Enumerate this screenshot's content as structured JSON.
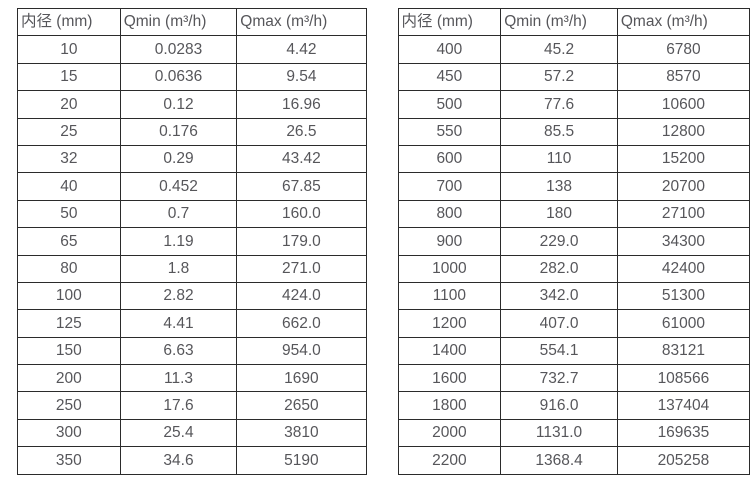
{
  "page": {
    "background": "#ffffff",
    "border_color": "#2b2b2b",
    "text_color": "#56565a"
  },
  "tables": [
    {
      "name": "flow-table-left",
      "headers": [
        "内径 (mm)",
        "Qmin (m³/h)",
        "Qmax (m³/h)"
      ],
      "rows": [
        [
          "10",
          "0.0283",
          "4.42"
        ],
        [
          "15",
          "0.0636",
          "9.54"
        ],
        [
          "20",
          "0.12",
          "16.96"
        ],
        [
          "25",
          "0.176",
          "26.5"
        ],
        [
          "32",
          "0.29",
          "43.42"
        ],
        [
          "40",
          "0.452",
          "67.85"
        ],
        [
          "50",
          "0.7",
          "160.0"
        ],
        [
          "65",
          "1.19",
          "179.0"
        ],
        [
          "80",
          "1.8",
          "271.0"
        ],
        [
          "100",
          "2.82",
          "424.0"
        ],
        [
          "125",
          "4.41",
          "662.0"
        ],
        [
          "150",
          "6.63",
          "954.0"
        ],
        [
          "200",
          "11.3",
          "1690"
        ],
        [
          "250",
          "17.6",
          "2650"
        ],
        [
          "300",
          "25.4",
          "3810"
        ],
        [
          "350",
          "34.6",
          "5190"
        ]
      ]
    },
    {
      "name": "flow-table-right",
      "headers": [
        "内径 (mm)",
        "Qmin (m³/h)",
        "Qmax (m³/h)"
      ],
      "rows": [
        [
          "400",
          "45.2",
          "6780"
        ],
        [
          "450",
          "57.2",
          "8570"
        ],
        [
          "500",
          "77.6",
          "10600"
        ],
        [
          "550",
          "85.5",
          "12800"
        ],
        [
          "600",
          "110",
          "15200"
        ],
        [
          "700",
          "138",
          "20700"
        ],
        [
          "800",
          "180",
          "27100"
        ],
        [
          "900",
          "229.0",
          "34300"
        ],
        [
          "1000",
          "282.0",
          "42400"
        ],
        [
          "1100",
          "342.0",
          "51300"
        ],
        [
          "1200",
          "407.0",
          "61000"
        ],
        [
          "1400",
          "554.1",
          "83121"
        ],
        [
          "1600",
          "732.7",
          "108566"
        ],
        [
          "1800",
          "916.0",
          "137404"
        ],
        [
          "2000",
          "1131.0",
          "169635"
        ],
        [
          "2200",
          "1368.4",
          "205258"
        ]
      ]
    }
  ]
}
